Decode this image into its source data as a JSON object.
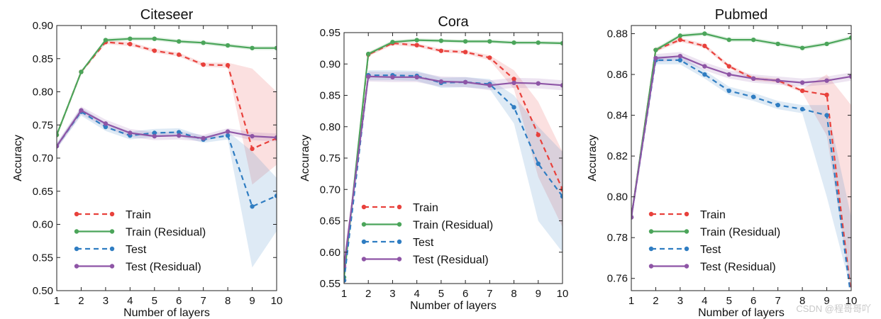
{
  "chart_data": [
    {
      "type": "line",
      "title": "Citeseer",
      "xlabel": "Number of layers",
      "ylabel": "Accuracy",
      "xlim": [
        1,
        10
      ],
      "ylim": [
        0.5,
        0.9
      ],
      "xticks": [
        "1",
        "2",
        "3",
        "4",
        "5",
        "6",
        "7",
        "8",
        "9",
        "10"
      ],
      "yticks": [
        "0.50",
        "0.55",
        "0.60",
        "0.65",
        "0.70",
        "0.75",
        "0.80",
        "0.85",
        "0.90"
      ],
      "legend_position": "bottom-left",
      "grid": false,
      "x": [
        1,
        2,
        3,
        4,
        5,
        6,
        7,
        8,
        9,
        10
      ],
      "series": [
        {
          "name": "Train",
          "color": "#e8413c",
          "style": "dashed",
          "values": [
            0.735,
            0.83,
            0.875,
            0.872,
            0.862,
            0.856,
            0.841,
            0.84,
            0.714,
            0.73
          ],
          "band_lower": [
            0.732,
            0.828,
            0.872,
            0.869,
            0.859,
            0.853,
            0.838,
            0.836,
            0.66,
            0.69
          ],
          "band_upper": [
            0.738,
            0.832,
            0.878,
            0.875,
            0.865,
            0.859,
            0.844,
            0.844,
            0.835,
            0.8
          ]
        },
        {
          "name": "Train (Residual)",
          "color": "#4ba55a",
          "style": "solid",
          "values": [
            0.735,
            0.83,
            0.878,
            0.88,
            0.88,
            0.876,
            0.874,
            0.87,
            0.866,
            0.866
          ],
          "band_lower": [
            0.733,
            0.828,
            0.875,
            0.877,
            0.877,
            0.873,
            0.871,
            0.867,
            0.863,
            0.863
          ],
          "band_upper": [
            0.737,
            0.832,
            0.881,
            0.883,
            0.883,
            0.879,
            0.877,
            0.873,
            0.869,
            0.869
          ]
        },
        {
          "name": "Test",
          "color": "#2f7dc2",
          "style": "dashed",
          "values": [
            0.718,
            0.77,
            0.747,
            0.734,
            0.738,
            0.739,
            0.728,
            0.734,
            0.627,
            0.643
          ],
          "band_lower": [
            0.714,
            0.764,
            0.741,
            0.728,
            0.732,
            0.733,
            0.723,
            0.728,
            0.535,
            0.59
          ],
          "band_upper": [
            0.722,
            0.776,
            0.753,
            0.74,
            0.744,
            0.745,
            0.733,
            0.74,
            0.71,
            0.67
          ]
        },
        {
          "name": "Test (Residual)",
          "color": "#8e55a6",
          "style": "solid",
          "values": [
            0.718,
            0.772,
            0.752,
            0.738,
            0.733,
            0.734,
            0.73,
            0.74,
            0.733,
            0.731
          ],
          "band_lower": [
            0.713,
            0.766,
            0.746,
            0.732,
            0.727,
            0.728,
            0.725,
            0.735,
            0.727,
            0.725
          ],
          "band_upper": [
            0.723,
            0.778,
            0.758,
            0.744,
            0.739,
            0.74,
            0.735,
            0.745,
            0.739,
            0.737
          ]
        }
      ]
    },
    {
      "type": "line",
      "title": "Cora",
      "xlabel": "Number of layers",
      "ylabel": "Accuracy",
      "xlim": [
        1,
        10
      ],
      "ylim": [
        0.55,
        0.95
      ],
      "xticks": [
        "1",
        "2",
        "3",
        "4",
        "5",
        "6",
        "7",
        "8",
        "9",
        "10"
      ],
      "yticks": [
        "0.55",
        "0.60",
        "0.65",
        "0.70",
        "0.75",
        "0.80",
        "0.85",
        "0.90",
        "0.95"
      ],
      "legend_position": "bottom-left",
      "grid": false,
      "x": [
        1,
        2,
        3,
        4,
        5,
        6,
        7,
        8,
        9,
        10
      ],
      "series": [
        {
          "name": "Train",
          "color": "#e8413c",
          "style": "dashed",
          "values": [
            0.555,
            0.915,
            0.933,
            0.93,
            0.921,
            0.919,
            0.91,
            0.876,
            0.787,
            0.7
          ],
          "band_lower": [
            0.552,
            0.912,
            0.93,
            0.927,
            0.918,
            0.916,
            0.906,
            0.86,
            0.72,
            0.64
          ],
          "band_upper": [
            0.558,
            0.918,
            0.936,
            0.933,
            0.924,
            0.922,
            0.914,
            0.89,
            0.84,
            0.76
          ]
        },
        {
          "name": "Train (Residual)",
          "color": "#4ba55a",
          "style": "solid",
          "values": [
            0.56,
            0.916,
            0.935,
            0.938,
            0.937,
            0.936,
            0.936,
            0.934,
            0.934,
            0.933
          ],
          "band_lower": [
            0.557,
            0.913,
            0.932,
            0.935,
            0.934,
            0.933,
            0.933,
            0.931,
            0.931,
            0.93
          ],
          "band_upper": [
            0.563,
            0.919,
            0.938,
            0.941,
            0.94,
            0.939,
            0.939,
            0.937,
            0.937,
            0.936
          ]
        },
        {
          "name": "Test",
          "color": "#2f7dc2",
          "style": "dashed",
          "values": [
            0.555,
            0.882,
            0.882,
            0.881,
            0.87,
            0.871,
            0.868,
            0.831,
            0.741,
            0.689
          ],
          "band_lower": [
            0.55,
            0.874,
            0.874,
            0.873,
            0.862,
            0.863,
            0.86,
            0.805,
            0.65,
            0.6
          ],
          "band_upper": [
            0.56,
            0.89,
            0.89,
            0.889,
            0.878,
            0.879,
            0.876,
            0.85,
            0.8,
            0.76
          ]
        },
        {
          "name": "Test (Residual)",
          "color": "#8e55a6",
          "style": "solid",
          "values": [
            0.578,
            0.88,
            0.879,
            0.879,
            0.872,
            0.871,
            0.866,
            0.87,
            0.869,
            0.866
          ],
          "band_lower": [
            0.572,
            0.872,
            0.871,
            0.871,
            0.864,
            0.863,
            0.858,
            0.862,
            0.861,
            0.858
          ],
          "band_upper": [
            0.584,
            0.888,
            0.887,
            0.887,
            0.88,
            0.879,
            0.874,
            0.878,
            0.877,
            0.874
          ]
        }
      ]
    },
    {
      "type": "line",
      "title": "Pubmed",
      "xlabel": "Number of layers",
      "ylabel": "Accuracy",
      "xlim": [
        1,
        10
      ],
      "ylim": [
        0.754,
        0.884
      ],
      "xticks": [
        "1",
        "2",
        "3",
        "4",
        "5",
        "6",
        "7",
        "8",
        "9",
        "10"
      ],
      "yticks": [
        "0.76",
        "0.78",
        "0.80",
        "0.82",
        "0.84",
        "0.86",
        "0.88"
      ],
      "legend_position": "bottom-left",
      "grid": false,
      "x": [
        1,
        2,
        3,
        4,
        5,
        6,
        7,
        8,
        9,
        10
      ],
      "series": [
        {
          "name": "Train",
          "color": "#e8413c",
          "style": "dashed",
          "values": [
            0.79,
            0.872,
            0.877,
            0.874,
            0.864,
            0.858,
            0.857,
            0.852,
            0.85,
            0.752
          ],
          "band_lower": [
            0.789,
            0.871,
            0.876,
            0.873,
            0.863,
            0.857,
            0.856,
            0.851,
            0.83,
            0.754
          ],
          "band_upper": [
            0.791,
            0.873,
            0.878,
            0.875,
            0.865,
            0.859,
            0.858,
            0.853,
            0.86,
            0.845
          ]
        },
        {
          "name": "Train (Residual)",
          "color": "#4ba55a",
          "style": "solid",
          "values": [
            0.79,
            0.872,
            0.879,
            0.88,
            0.877,
            0.877,
            0.875,
            0.873,
            0.875,
            0.878
          ],
          "band_lower": [
            0.789,
            0.871,
            0.878,
            0.879,
            0.876,
            0.876,
            0.874,
            0.872,
            0.874,
            0.877
          ],
          "band_upper": [
            0.791,
            0.873,
            0.88,
            0.881,
            0.878,
            0.878,
            0.876,
            0.874,
            0.876,
            0.879
          ]
        },
        {
          "name": "Test",
          "color": "#2f7dc2",
          "style": "dashed",
          "values": [
            0.79,
            0.867,
            0.867,
            0.86,
            0.852,
            0.849,
            0.845,
            0.843,
            0.84,
            0.75
          ],
          "band_lower": [
            0.789,
            0.865,
            0.865,
            0.858,
            0.85,
            0.847,
            0.843,
            0.841,
            0.8,
            0.754
          ],
          "band_upper": [
            0.791,
            0.869,
            0.869,
            0.862,
            0.854,
            0.851,
            0.847,
            0.845,
            0.845,
            0.79
          ]
        },
        {
          "name": "Test (Residual)",
          "color": "#8e55a6",
          "style": "solid",
          "values": [
            0.79,
            0.868,
            0.869,
            0.864,
            0.86,
            0.858,
            0.857,
            0.856,
            0.857,
            0.859
          ],
          "band_lower": [
            0.789,
            0.866,
            0.867,
            0.862,
            0.858,
            0.856,
            0.855,
            0.854,
            0.855,
            0.857
          ],
          "band_upper": [
            0.791,
            0.87,
            0.871,
            0.866,
            0.862,
            0.86,
            0.859,
            0.858,
            0.859,
            0.861
          ]
        }
      ]
    }
  ],
  "watermark": "CSDN @程哥哥吖"
}
